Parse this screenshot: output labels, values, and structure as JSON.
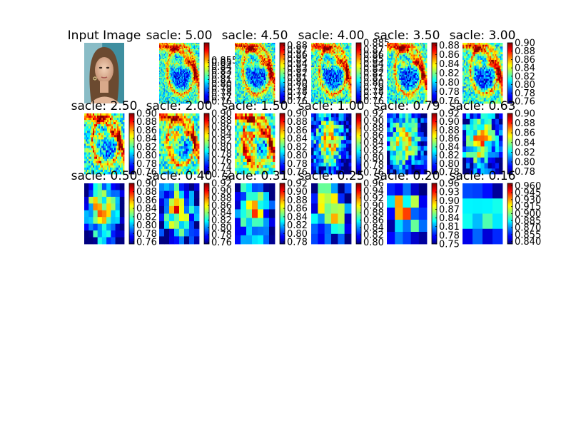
{
  "colormap": "jet",
  "chart_data": [
    {
      "type": "image",
      "title": "Input Image",
      "content": "photo-portrait-woman"
    },
    {
      "type": "heatmap",
      "title": "sacle: 5.00",
      "colorbar_ticks": [
        "0.855",
        "0.85",
        "0.84",
        "0.83",
        "0.82",
        "0.81",
        "0.80",
        "0.79",
        "0.78",
        "0.77",
        "0.76"
      ],
      "value_range": [
        0.755,
        0.895
      ]
    },
    {
      "type": "heatmap",
      "title": "sacle: 4.50",
      "colorbar_ticks": [
        "0.88",
        "0.87",
        "0.86",
        "0.85",
        "0.84",
        "0.83",
        "0.82",
        "0.81",
        "0.80",
        "0.79",
        "0.78",
        "0.77",
        "0.76"
      ],
      "value_range": [
        0.755,
        0.885
      ]
    },
    {
      "type": "heatmap",
      "title": "sacle: 4.00",
      "colorbar_ticks": [
        "0.885",
        "0.87",
        "0.86",
        "0.85",
        "0.84",
        "0.83",
        "0.82",
        "0.81",
        "0.80",
        "0.79",
        "0.78",
        "0.77",
        "0.76"
      ],
      "value_range": [
        0.755,
        0.885
      ]
    },
    {
      "type": "heatmap",
      "title": "sacle: 3.50",
      "colorbar_ticks": [
        "0.88",
        "0.86",
        "0.84",
        "0.82",
        "0.80",
        "0.78",
        "0.76"
      ],
      "value_range": [
        0.755,
        0.885
      ]
    },
    {
      "type": "heatmap",
      "title": "sacle: 3.00",
      "colorbar_ticks": [
        "0.90",
        "0.88",
        "0.86",
        "0.84",
        "0.82",
        "0.80",
        "0.78",
        "0.76"
      ],
      "value_range": [
        0.755,
        0.9
      ]
    },
    {
      "type": "heatmap",
      "title": "sacle: 2.50",
      "colorbar_ticks": [
        "0.90",
        "0.88",
        "0.86",
        "0.84",
        "0.82",
        "0.80",
        "0.78",
        "0.76"
      ],
      "value_range": [
        0.755,
        0.9
      ]
    },
    {
      "type": "heatmap",
      "title": "sacle: 2.00",
      "colorbar_ticks": [
        "0.90",
        "0.88",
        "0.86",
        "0.84",
        "0.82",
        "0.80",
        "0.78",
        "0.76",
        "0.74",
        "0.72"
      ],
      "value_range": [
        0.72,
        0.9
      ]
    },
    {
      "type": "heatmap",
      "title": "sacle: 1.50",
      "colorbar_ticks": [
        "0.90",
        "0.88",
        "0.86",
        "0.84",
        "0.82",
        "0.80",
        "0.78",
        "0.76"
      ],
      "value_range": [
        0.755,
        0.9
      ]
    },
    {
      "type": "heatmap",
      "title": "sacle: 1.00",
      "colorbar_ticks": [
        "0.92",
        "0.90",
        "0.88",
        "0.86",
        "0.84",
        "0.82",
        "0.80",
        "0.78",
        "0.76"
      ],
      "value_range": [
        0.755,
        0.92
      ]
    },
    {
      "type": "heatmap",
      "title": "sacle: 0.79",
      "colorbar_ticks": [
        "0.92",
        "0.90",
        "0.88",
        "0.86",
        "0.84",
        "0.82",
        "0.80",
        "0.78"
      ],
      "value_range": [
        0.775,
        0.92
      ]
    },
    {
      "type": "heatmap",
      "title": "sacle: 0.63",
      "colorbar_ticks": [
        "0.90",
        "0.88",
        "0.86",
        "0.84",
        "0.82",
        "0.80",
        "0.78"
      ],
      "value_range": [
        0.775,
        0.9
      ]
    },
    {
      "type": "heatmap",
      "title": "sacle: 0.50",
      "colorbar_ticks": [
        "0.90",
        "0.88",
        "0.86",
        "0.84",
        "0.82",
        "0.80",
        "0.78",
        "0.76"
      ],
      "value_range": [
        0.755,
        0.9
      ]
    },
    {
      "type": "heatmap",
      "title": "sacle: 0.40",
      "colorbar_ticks": [
        "0.92",
        "0.90",
        "0.88",
        "0.86",
        "0.84",
        "0.82",
        "0.80",
        "0.78",
        "0.76"
      ],
      "value_range": [
        0.755,
        0.92
      ]
    },
    {
      "type": "heatmap",
      "title": "sacle: 0.31",
      "colorbar_ticks": [
        "0.92",
        "0.90",
        "0.88",
        "0.86",
        "0.84",
        "0.82",
        "0.80",
        "0.78"
      ],
      "value_range": [
        0.775,
        0.92
      ]
    },
    {
      "type": "heatmap",
      "title": "sacle: 0.25",
      "colorbar_ticks": [
        "0.96",
        "0.94",
        "0.92",
        "0.90",
        "0.88",
        "0.86",
        "0.84",
        "0.82",
        "0.80"
      ],
      "value_range": [
        0.795,
        0.96
      ]
    },
    {
      "type": "heatmap",
      "title": "sacle: 0.20",
      "colorbar_ticks": [
        "0.96",
        "0.93",
        "0.90",
        "0.87",
        "0.84",
        "0.81",
        "0.78",
        "0.75"
      ],
      "value_range": [
        0.75,
        0.96
      ]
    },
    {
      "type": "heatmap",
      "title": "sacle: 0.16",
      "colorbar_ticks": [
        "0.960",
        "0.945",
        "0.930",
        "0.915",
        "0.900",
        "0.885",
        "0.870",
        "0.855",
        "0.840"
      ],
      "value_range": [
        0.835,
        0.965
      ]
    }
  ]
}
